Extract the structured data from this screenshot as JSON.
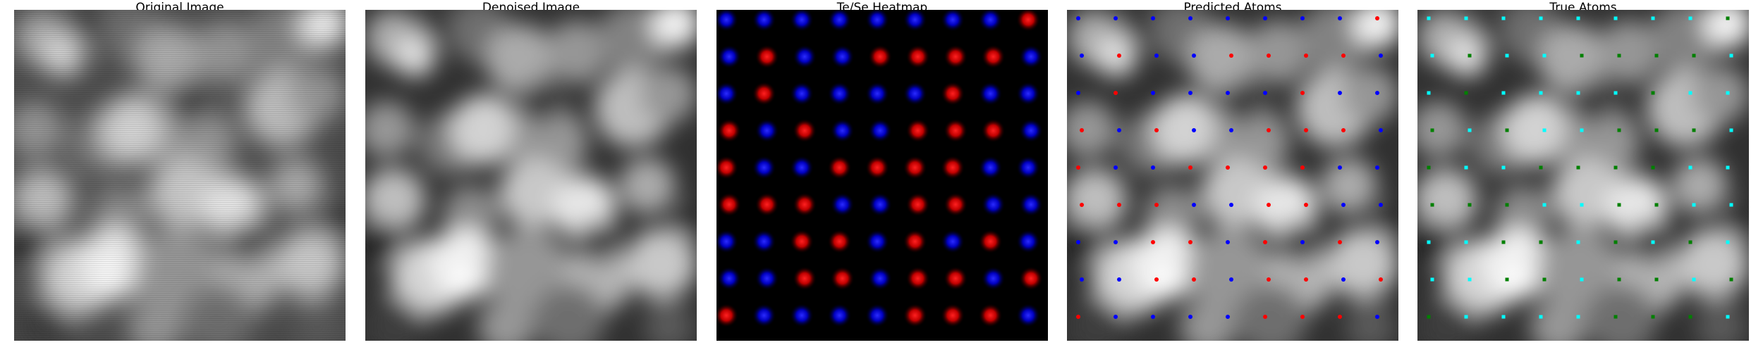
{
  "panels": [
    {
      "title": "Original Image"
    },
    {
      "title": "Denoised Image"
    },
    {
      "title": "Te/Se Heatmap"
    },
    {
      "title": "Predicted Atoms"
    },
    {
      "title": "True Atoms"
    }
  ],
  "colors": {
    "figure_background": "#ffffff",
    "heatmap_background": "#000000",
    "heatmap_te": "#ff0000",
    "heatmap_se": "#0000ff",
    "predicted_red_marker": "#ff0000",
    "predicted_blue_marker": "#0000ff",
    "true_cyan_marker": "#00ffff",
    "true_green_marker": "#008000"
  },
  "legend": null
}
